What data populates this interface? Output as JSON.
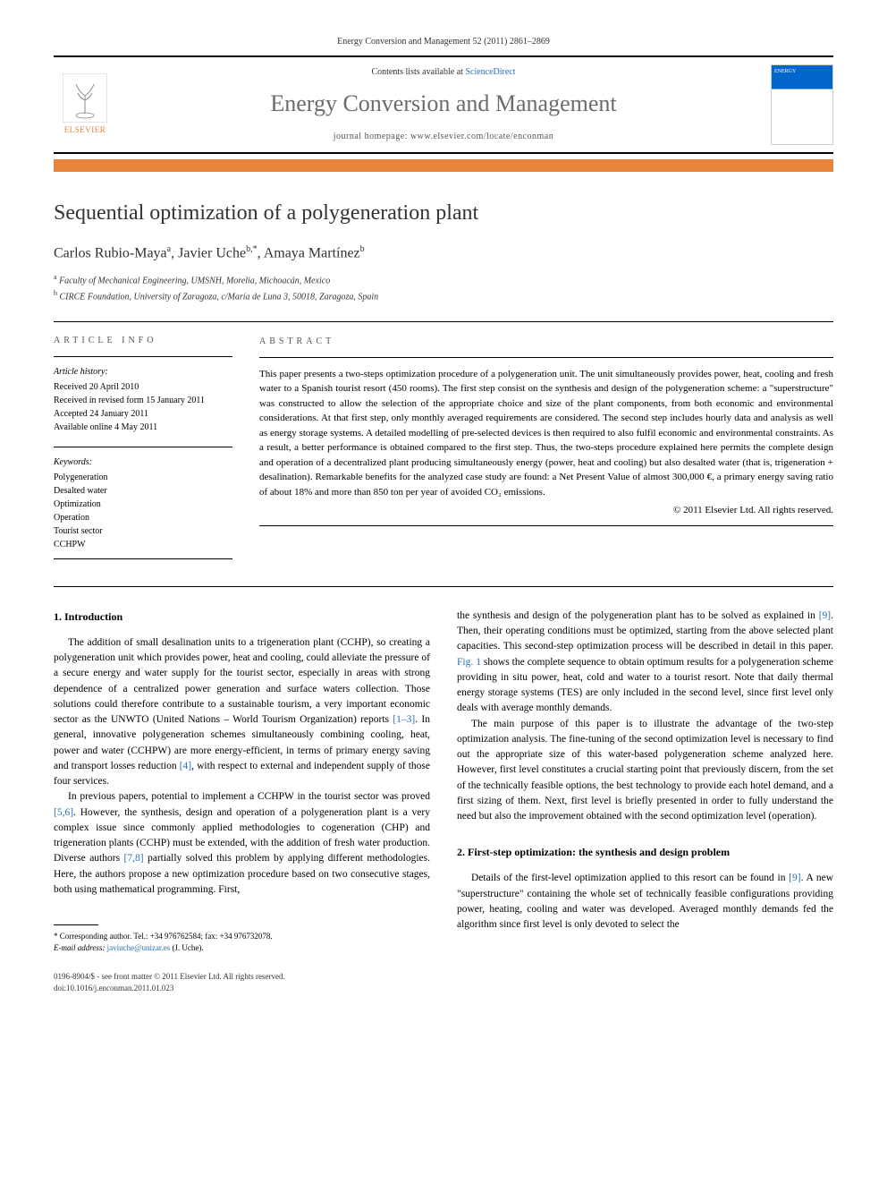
{
  "header": {
    "citation": "Energy Conversion and Management 52 (2011) 2861–2869",
    "contents_prefix": "Contents lists available at ",
    "contents_link": "ScienceDirect",
    "journal_name": "Energy Conversion and Management",
    "homepage_label": "journal homepage: www.elsevier.com/locate/enconman",
    "publisher": "ELSEVIER",
    "cover_text": "ENERGY"
  },
  "article": {
    "title": "Sequential optimization of a polygeneration plant",
    "authors_html": "Carlos Rubio-Maya ᵃ, Javier Uche ᵇ·*, Amaya Martínez ᵇ",
    "author1": "Carlos Rubio-Maya",
    "author1_sup": "a",
    "author2": "Javier Uche",
    "author2_sup": "b,",
    "author2_corr": "*",
    "author3": "Amaya Martínez",
    "author3_sup": "b",
    "affil_a_sup": "a",
    "affil_a": "Faculty of Mechanical Engineering, UMSNH, Morelia, Michoacán, Mexico",
    "affil_b_sup": "b",
    "affil_b": "CIRCE Foundation, University of Zaragoza, c/María de Luna 3, 50018, Zaragoza, Spain"
  },
  "info": {
    "section_label": "ARTICLE INFO",
    "history_label": "Article history:",
    "history": [
      "Received 20 April 2010",
      "Received in revised form 15 January 2011",
      "Accepted 24 January 2011",
      "Available online 4 May 2011"
    ],
    "keywords_label": "Keywords:",
    "keywords": [
      "Polygeneration",
      "Desalted water",
      "Optimization",
      "Operation",
      "Tourist sector",
      "CCHPW"
    ]
  },
  "abstract": {
    "section_label": "ABSTRACT",
    "text": "This paper presents a two-steps optimization procedure of a polygeneration unit. The unit simultaneously provides power, heat, cooling and fresh water to a Spanish tourist resort (450 rooms). The first step consist on the synthesis and design of the polygeneration scheme: a \"superstructure\" was constructed to allow the selection of the appropriate choice and size of the plant components, from both economic and environmental considerations. At that first step, only monthly averaged requirements are considered. The second step includes hourly data and analysis as well as energy storage systems. A detailed modelling of pre-selected devices is then required to also fulfil economic and environmental constraints. As a result, a better performance is obtained compared to the first step. Thus, the two-steps procedure explained here permits the complete design and operation of a decentralized plant producing simultaneously energy (power, heat and cooling) but also desalted water (that is, trigeneration + desalination). Remarkable benefits for the analyzed case study are found: a Net Present Value of almost 300,000 €, a primary energy saving ratio of about 18% and more than 850 ton per year of avoided CO₂ emissions.",
    "copyright": "© 2011 Elsevier Ltd. All rights reserved."
  },
  "body": {
    "s1_heading": "1. Introduction",
    "s1_p1": "The addition of small desalination units to a trigeneration plant (CCHP), so creating a polygeneration unit which provides power, heat and cooling, could alleviate the pressure of a secure energy and water supply for the tourist sector, especially in areas with strong dependence of a centralized power generation and surface waters collection. Those solutions could therefore contribute to a sustainable tourism, a very important economic sector as the UNWTO (United Nations – World Tourism Organization) reports [1–3]. In general, innovative polygeneration schemes simultaneously combining cooling, heat, power and water (CCHPW) are more energy-efficient, in terms of primary energy saving and transport losses reduction [4], with respect to external and independent supply of those four services.",
    "s1_p2": "In previous papers, potential to implement a CCHPW in the tourist sector was proved [5,6]. However, the synthesis, design and operation of a polygeneration plant is a very complex issue since commonly applied methodologies to cogeneration (CHP) and trigeneration plants (CCHP) must be extended, with the addition of fresh water production. Diverse authors [7,8] partially solved this problem by applying different methodologies. Here, the authors propose a new optimization procedure based on two consecutive stages, both using mathematical programming. First,",
    "s1_p3": "the synthesis and design of the polygeneration plant has to be solved as explained in [9]. Then, their operating conditions must be optimized, starting from the above selected plant capacities. This second-step optimization process will be described in detail in this paper. Fig. 1 shows the complete sequence to obtain optimum results for a polygeneration scheme providing in situ power, heat, cold and water to a tourist resort. Note that daily thermal energy storage systems (TES) are only included in the second level, since first level only deals with average monthly demands.",
    "s1_p4": "The main purpose of this paper is to illustrate the advantage of the two-step optimization analysis. The fine-tuning of the second optimization level is necessary to find out the appropriate size of this water-based polygeneration scheme analyzed here. However, first level constitutes a crucial starting point that previously discern, from the set of the technically feasible options, the best technology to provide each hotel demand, and a first sizing of them. Next, first level is briefly presented in order to fully understand the need but also the improvement obtained with the second optimization level (operation).",
    "s2_heading": "2. First-step optimization: the synthesis and design problem",
    "s2_p1": "Details of the first-level optimization applied to this resort can be found in [9]. A new \"superstructure\" containing the whole set of technically feasible configurations providing power, heating, cooling and water was developed. Averaged monthly demands fed the algorithm since first level is only devoted to select the"
  },
  "footnote": {
    "corr_label": "* Corresponding author. Tel.: +34 976762584; fax: +34 976732078.",
    "email_label": "E-mail address:",
    "email": "javiuche@unizar.es",
    "email_author": "(J. Uche)."
  },
  "footer": {
    "issn_line": "0196-8904/$ - see front matter © 2011 Elsevier Ltd. All rights reserved.",
    "doi_line": "doi:10.1016/j.enconman.2011.01.023"
  },
  "refs": {
    "r1_3": "[1–3]",
    "r4": "[4]",
    "r5_6": "[5,6]",
    "r7_8": "[7,8]",
    "r9a": "[9]",
    "r9b": "[9]",
    "fig1": "Fig. 1"
  },
  "style": {
    "accent_orange": "#e8833a",
    "link_color": "#2a6fbb",
    "journal_gray": "#6b6b6b",
    "body_font_size": 11.5,
    "abstract_font_size": 11,
    "title_font_size": 24,
    "journal_name_size": 26
  }
}
